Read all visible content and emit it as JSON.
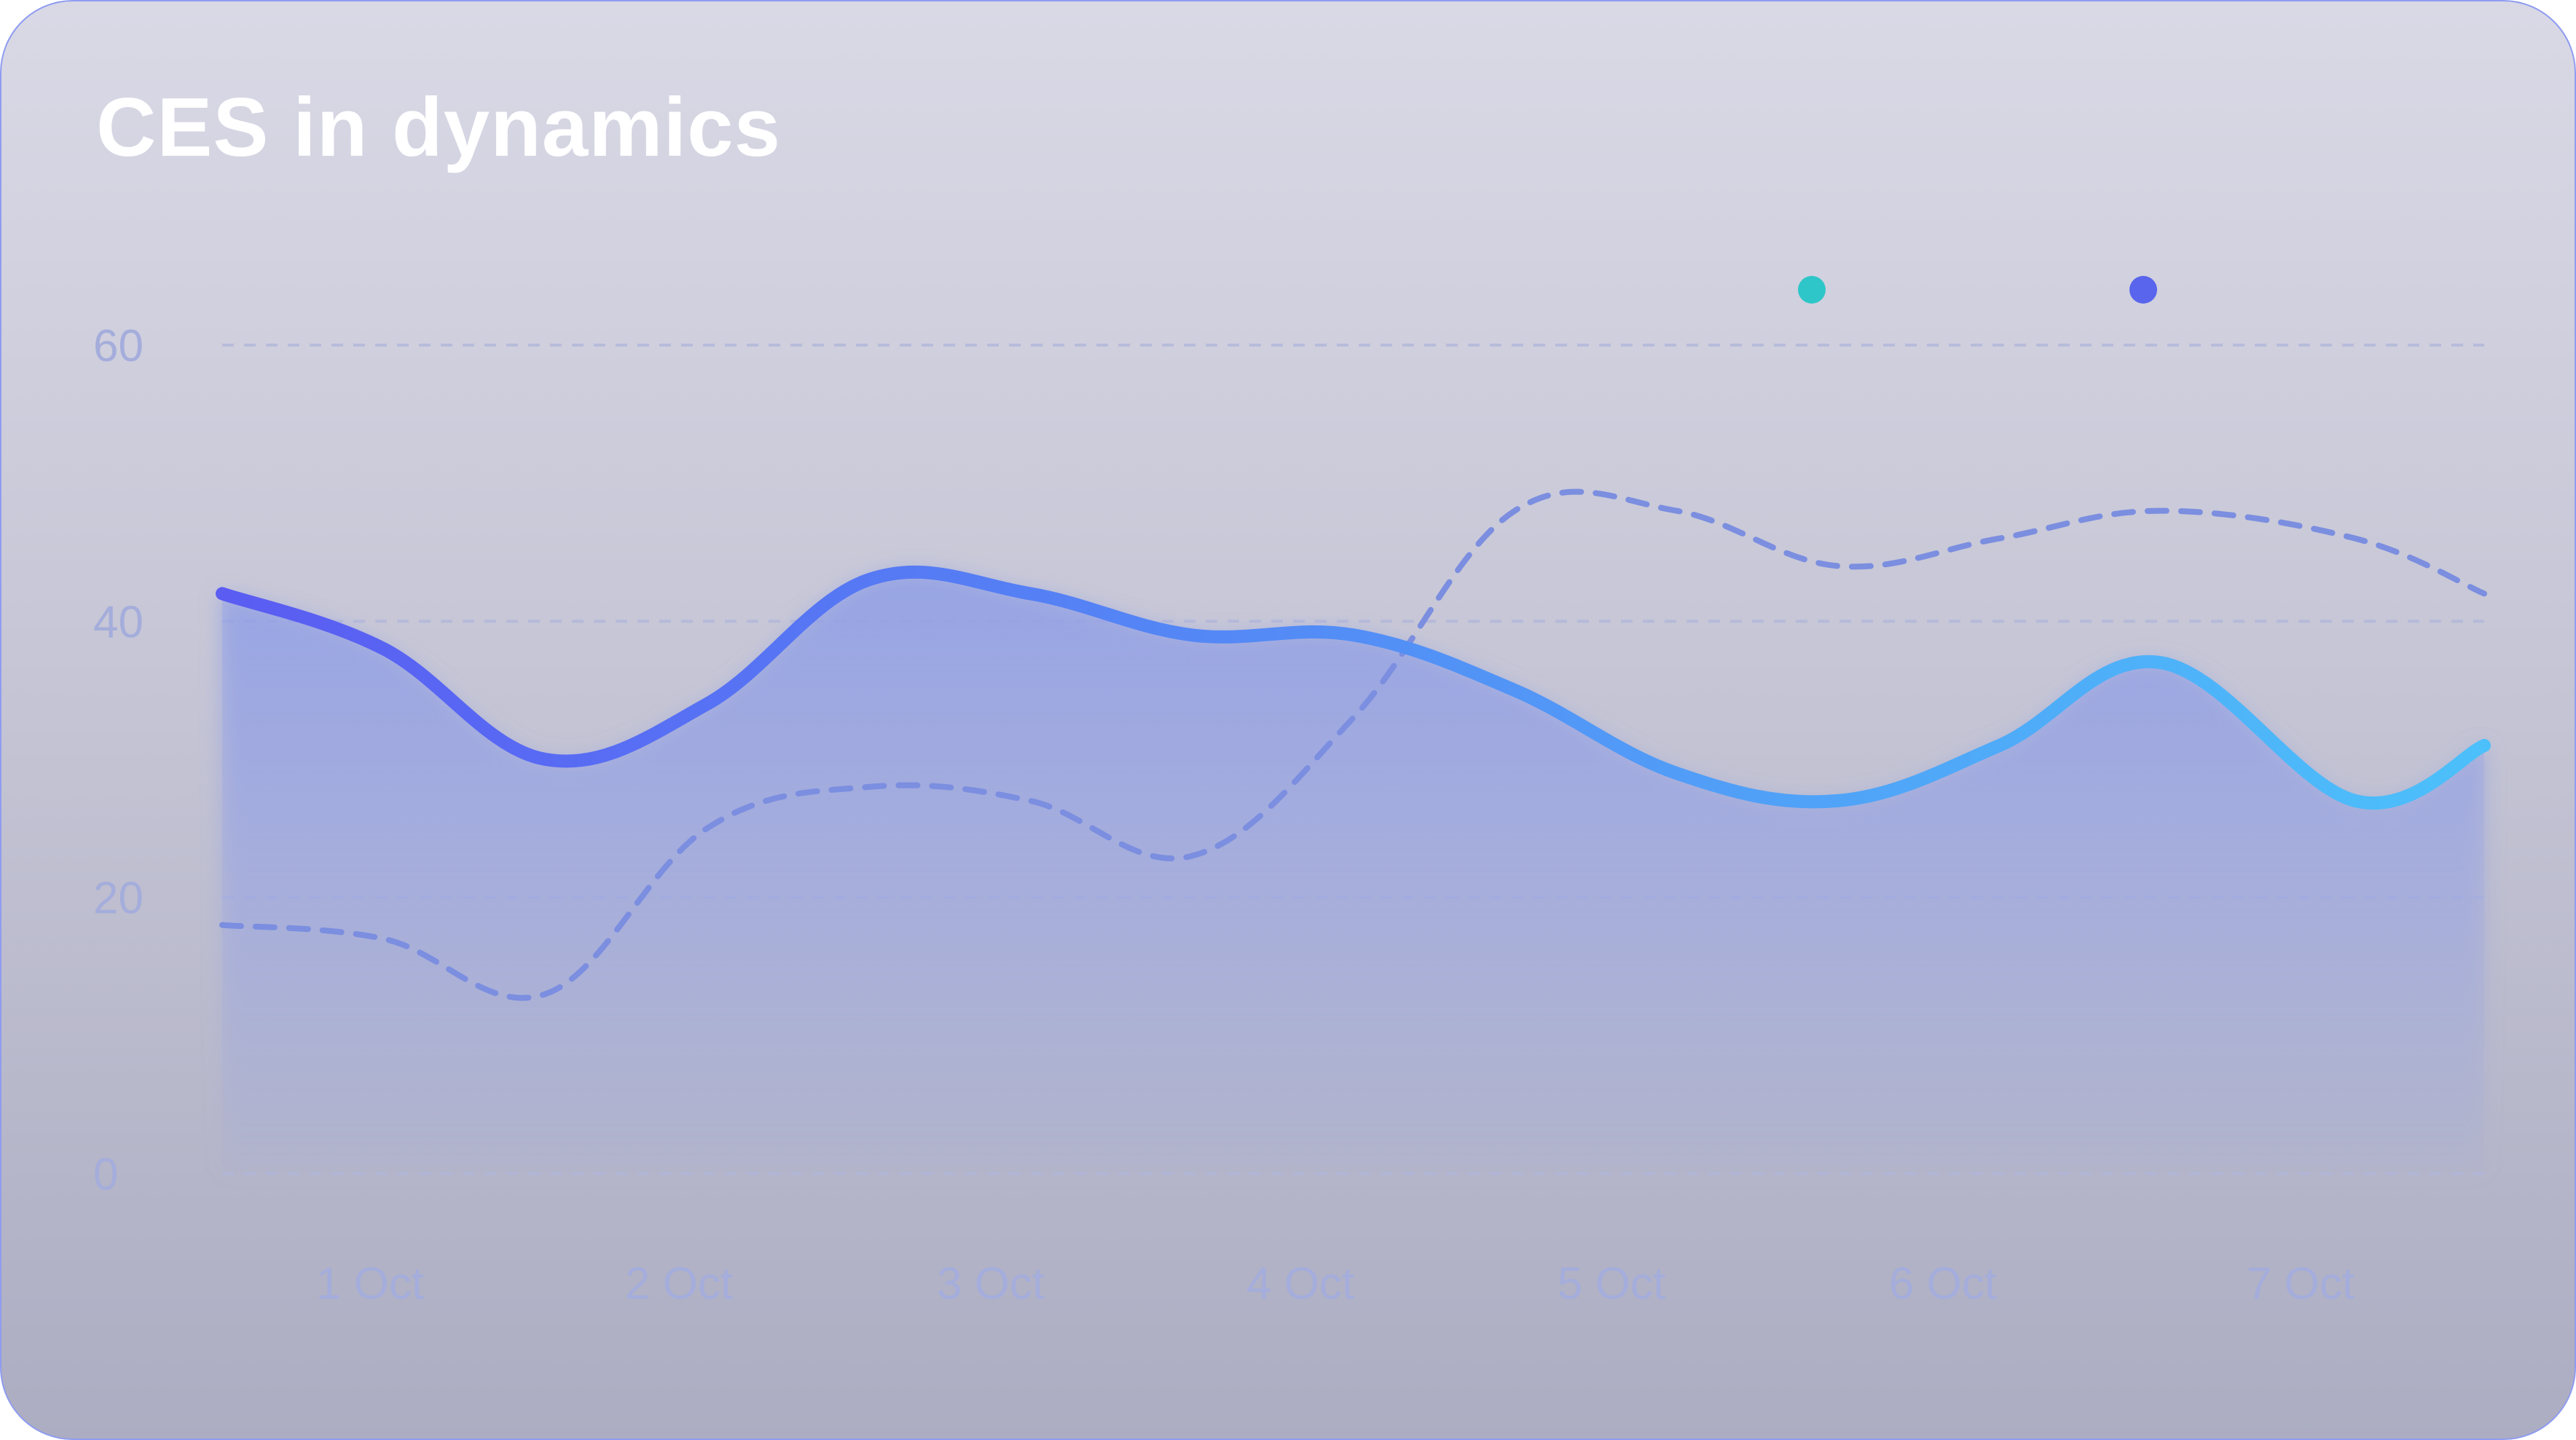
{
  "card": {
    "title": "CES in dynamics"
  },
  "colors": {
    "main_line_start": "#5a5cf2",
    "main_line_end": "#4cc0fa",
    "dashed_line": "#7b8ee0",
    "grid": "#b3b8da",
    "area": "#8f9ee6",
    "legend_teal": "#2ec6c8",
    "legend_indigo": "#5865ec"
  },
  "chart_data": {
    "type": "line",
    "title": "CES in dynamics",
    "xlabel": "",
    "ylabel": "",
    "ylim": [
      0,
      60
    ],
    "yticks": [
      "0",
      "20",
      "40",
      "60"
    ],
    "categories": [
      "1 Oct",
      "2 Oct",
      "3 Oct",
      "4 Oct",
      "5 Oct",
      "6 Oct",
      "7 Oct"
    ],
    "grid": true,
    "legend_placement": "top-right",
    "legend": [
      {
        "label": "",
        "color": "#2ec6c8"
      },
      {
        "label": "",
        "color": "#5865ec"
      }
    ],
    "series": [
      {
        "style": "solid-area",
        "x": [
          0.0,
          0.5,
          1.0,
          1.5,
          2.0,
          2.5,
          3.0,
          3.5,
          4.0,
          4.5,
          5.0,
          5.5,
          6.0,
          6.6,
          7.0
        ],
        "values": [
          42,
          38,
          30,
          34,
          43,
          42,
          39,
          39,
          35,
          29,
          27,
          31,
          37,
          27,
          31
        ]
      },
      {
        "style": "dashed",
        "x": [
          0.0,
          0.5,
          1.0,
          1.5,
          2.0,
          2.5,
          3.0,
          3.5,
          4.0,
          4.5,
          5.0,
          5.5,
          6.0,
          6.6,
          7.0
        ],
        "values": [
          18,
          17,
          13,
          25,
          28,
          27,
          23,
          33,
          48,
          48,
          44,
          46,
          48,
          46,
          42
        ]
      }
    ]
  }
}
